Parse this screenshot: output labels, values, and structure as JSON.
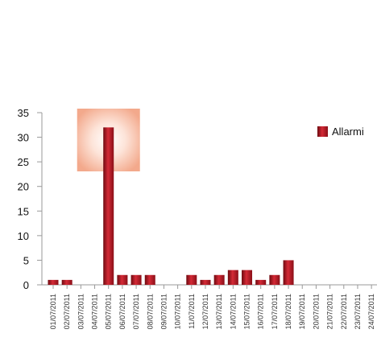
{
  "chart_data": {
    "type": "bar",
    "categories": [
      "01/07/2011",
      "02/07/2011",
      "03/07/2011",
      "04/07/2011",
      "05/07/2011",
      "06/07/2011",
      "07/07/2011",
      "08/07/2011",
      "09/07/2011",
      "10/07/2011",
      "11/07/2011",
      "12/07/2011",
      "13/07/2011",
      "14/07/2011",
      "15/07/2011",
      "16/07/2011",
      "17/07/2011",
      "18/07/2011",
      "19/07/2011",
      "20/07/2011",
      "21/07/2011",
      "22/07/2011",
      "23/07/2011",
      "24/07/2011"
    ],
    "series": [
      {
        "name": "Allarmi",
        "values": [
          1,
          1,
          0,
          0,
          32,
          2,
          2,
          2,
          0,
          0,
          2,
          1,
          2,
          3,
          3,
          1,
          2,
          5,
          0,
          0,
          0,
          0,
          0,
          0
        ]
      }
    ],
    "ylim": [
      0,
      35
    ],
    "yticks": [
      0,
      5,
      10,
      15,
      20,
      25,
      30,
      35
    ],
    "highlighted_category": "05/07/2011",
    "grid": false,
    "legend_position": "right",
    "colors": {
      "bar_light": "#d42a36",
      "bar_dark": "#6e0a10",
      "highlight": "#f6b9a3",
      "axis": "#999999"
    }
  }
}
